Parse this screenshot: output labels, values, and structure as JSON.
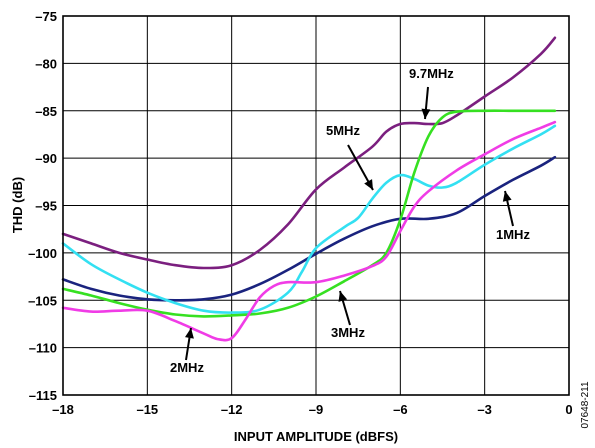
{
  "chart_data": {
    "type": "line",
    "xlabel": "INPUT AMPLITUDE (dBFS)",
    "ylabel": "THD (dB)",
    "xlim": [
      -18,
      0
    ],
    "ylim": [
      -115,
      -75
    ],
    "x_ticks": [
      -18,
      -15,
      -12,
      -9,
      -6,
      -3,
      0
    ],
    "x_tick_labels": [
      "–18",
      "–15",
      "–12",
      "–9",
      "–6",
      "–3",
      "0"
    ],
    "y_ticks": [
      -75,
      -80,
      -85,
      -90,
      -95,
      -100,
      -105,
      -110,
      -115
    ],
    "y_tick_labels": [
      "–75",
      "–80",
      "–85",
      "–90",
      "–95",
      "–100",
      "–105",
      "–110",
      "–115"
    ],
    "grid": true,
    "series": [
      {
        "name": "9.7MHz",
        "color": "#7b1f7f",
        "x": [
          -18,
          -17,
          -16,
          -15,
          -14,
          -13,
          -12,
          -11,
          -10,
          -9,
          -8,
          -7,
          -6.5,
          -6,
          -5.5,
          -5,
          -4.5,
          -4,
          -3,
          -2,
          -1,
          -0.5
        ],
        "y": [
          -98,
          -99,
          -100,
          -100.7,
          -101.3,
          -101.6,
          -101.3,
          -99.7,
          -97,
          -93.3,
          -91,
          -88.8,
          -87.2,
          -86.4,
          -86.3,
          -86.4,
          -86.3,
          -85.5,
          -83.5,
          -81.5,
          -79,
          -77.3
        ]
      },
      {
        "name": "1MHz",
        "color": "#1a237e",
        "x": [
          -18,
          -17,
          -16,
          -15,
          -14,
          -13,
          -12,
          -11,
          -10,
          -9,
          -8,
          -7,
          -6,
          -5,
          -4,
          -3,
          -2,
          -1,
          -0.5
        ],
        "y": [
          -102.8,
          -103.8,
          -104.5,
          -104.9,
          -105,
          -104.9,
          -104.4,
          -103.3,
          -101.8,
          -100.1,
          -98.5,
          -97.2,
          -96.4,
          -96.4,
          -95.8,
          -94,
          -92.3,
          -90.8,
          -89.9
        ]
      },
      {
        "name": "5MHz",
        "color": "#33e0f2",
        "x": [
          -18,
          -17,
          -16,
          -15,
          -14,
          -13,
          -12,
          -11,
          -10,
          -9.5,
          -9,
          -8,
          -7.5,
          -7,
          -6.5,
          -6,
          -5.5,
          -5,
          -4.5,
          -4,
          -3,
          -2,
          -1,
          -0.5
        ],
        "y": [
          -99,
          -101.2,
          -102.8,
          -104.2,
          -105.3,
          -106.1,
          -106.3,
          -106,
          -104.2,
          -102,
          -99.5,
          -97.3,
          -96.3,
          -94.3,
          -92.6,
          -91.8,
          -92.2,
          -92.9,
          -93.1,
          -92.6,
          -90.7,
          -89,
          -87.5,
          -86.6
        ]
      },
      {
        "name": "3MHz",
        "color": "#36e021",
        "x": [
          -18,
          -17,
          -16,
          -15,
          -14,
          -13,
          -12,
          -11,
          -10,
          -9,
          -8,
          -7,
          -6.5,
          -6,
          -5.5,
          -5,
          -4.5,
          -4,
          -3,
          -2,
          -1,
          -0.5
        ],
        "y": [
          -103.8,
          -104.5,
          -105.3,
          -106,
          -106.5,
          -106.7,
          -106.6,
          -106.4,
          -105.8,
          -104.6,
          -103,
          -101.3,
          -100,
          -96.5,
          -91.5,
          -87.7,
          -85.7,
          -85.1,
          -85,
          -85,
          -85,
          -85
        ]
      },
      {
        "name": "2MHz",
        "color": "#f03ce6",
        "x": [
          -18,
          -17,
          -16,
          -15,
          -14,
          -13,
          -12.5,
          -12,
          -11.5,
          -11,
          -10.5,
          -10,
          -9,
          -8,
          -7,
          -6.5,
          -6,
          -5.5,
          -5,
          -4,
          -3,
          -2,
          -1,
          -0.5
        ],
        "y": [
          -105.8,
          -106.2,
          -106.1,
          -106.1,
          -107.2,
          -108.5,
          -109.1,
          -109,
          -107,
          -104.7,
          -103.5,
          -103.1,
          -103.1,
          -102.4,
          -101.4,
          -100.4,
          -97.7,
          -95.1,
          -93.5,
          -91.3,
          -89.6,
          -88,
          -86.8,
          -86.2
        ]
      }
    ],
    "annotations": [
      {
        "text": "9.7MHz",
        "series": "9.7MHz"
      },
      {
        "text": "5MHz",
        "series": "5MHz"
      },
      {
        "text": "1MHz",
        "series": "1MHz"
      },
      {
        "text": "3MHz",
        "series": "3MHz"
      },
      {
        "text": "2MHz",
        "series": "2MHz"
      }
    ]
  },
  "figure_id": "07648-211"
}
